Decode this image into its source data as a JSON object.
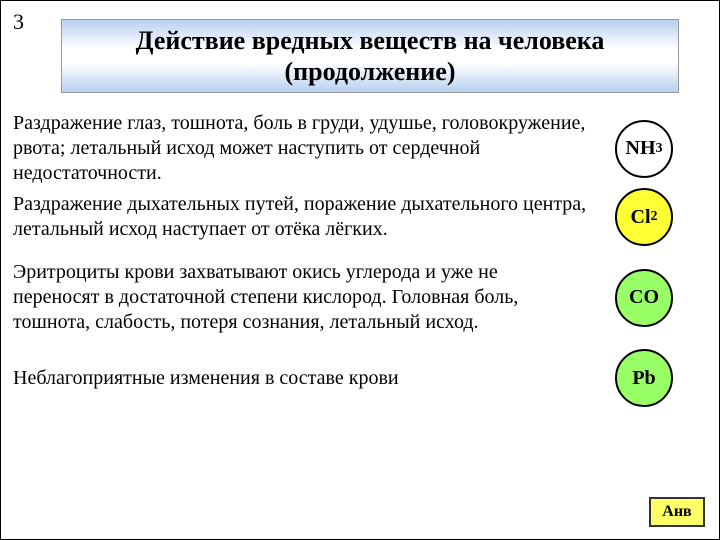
{
  "slide_number": "3",
  "title": "Действие вредных веществ на человека (продолжение)",
  "rows": [
    {
      "desc": " Раздражение глаз, тошнота, боль в груди, удушье, головокружение, рвота; летальный исход может наступить от сердечной недостаточности.",
      "chem_html": "NH<sub>3</sub>",
      "bg": "#ffffff"
    },
    {
      "desc": " Раздражение дыхательных путей, поражение дыхательного центра, летальный исход наступает от отёка лёгких.",
      "chem_html": "Cl<sub>2</sub>",
      "bg": "#ffff33"
    },
    {
      "desc": " Эритроциты крови захватывают окись углерода и уже не переносят в достаточной степени кислород. Головная боль, тошнота, слабость, потеря сознания, летальный исход.",
      "chem_html": "CO",
      "bg": "#99ff66"
    },
    {
      "desc": " Неблагоприятные изменения в составе крови",
      "chem_html": "Pb",
      "bg": "#99ff66"
    }
  ],
  "button_label": "Анв",
  "colors": {
    "band_grad_edge": "#b8d0f0",
    "band_grad_mid": "#ffffff",
    "circle_border": "#000000",
    "text": "#000000",
    "button_bg": "#ffff66"
  }
}
